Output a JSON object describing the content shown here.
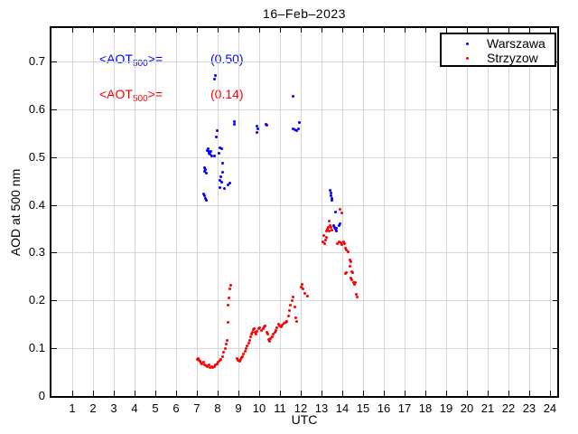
{
  "title": "16–Feb–2023",
  "annotations": [
    {
      "prefix": "<AOT",
      "sub": "500",
      "suffix": ">=",
      "value": "(0.50)",
      "color": "#0000ff"
    },
    {
      "prefix": "<AOT",
      "sub": "500",
      "suffix": ">=",
      "value": "(0.14)",
      "color": "#ff0000"
    }
  ],
  "chart_data": {
    "type": "scatter",
    "title": "16–Feb–2023",
    "xlabel": "UTC",
    "ylabel": "AOD at 500 nm",
    "xlim": [
      0,
      24.35
    ],
    "ylim": [
      0,
      0.77
    ],
    "x_ticks": [
      1,
      2,
      3,
      4,
      5,
      6,
      7,
      8,
      9,
      10,
      11,
      12,
      13,
      14,
      15,
      16,
      17,
      18,
      19,
      20,
      21,
      22,
      23,
      24
    ],
    "y_ticks": [
      0,
      0.1,
      0.2,
      0.3,
      0.4,
      0.5,
      0.6,
      0.7
    ],
    "y_tick_labels": [
      "0",
      "0.1",
      "0.2",
      "0.3",
      "0.4",
      "0.5",
      "0.6",
      "0.7"
    ],
    "grid": true,
    "grid_color": "#d6d6d6",
    "legend_position": "top-right",
    "marker": "dot",
    "series": [
      {
        "name": "Warszawa",
        "color": "#0000ff",
        "mean_aot_500": 0.5,
        "points": [
          [
            7.91,
            0.67
          ],
          [
            7.85,
            0.664
          ],
          [
            7.34,
            0.423
          ],
          [
            7.38,
            0.419
          ],
          [
            7.41,
            0.414
          ],
          [
            7.44,
            0.41
          ],
          [
            7.36,
            0.477
          ],
          [
            7.43,
            0.473
          ],
          [
            7.38,
            0.47
          ],
          [
            7.45,
            0.466
          ],
          [
            7.52,
            0.513
          ],
          [
            7.55,
            0.517
          ],
          [
            7.57,
            0.508
          ],
          [
            7.6,
            0.511
          ],
          [
            7.63,
            0.506
          ],
          [
            7.66,
            0.512
          ],
          [
            7.7,
            0.503
          ],
          [
            7.83,
            0.503
          ],
          [
            7.95,
            0.542
          ],
          [
            7.98,
            0.555
          ],
          [
            8.05,
            0.508
          ],
          [
            8.09,
            0.519
          ],
          [
            8.19,
            0.517
          ],
          [
            8.26,
            0.487
          ],
          [
            8.22,
            0.469
          ],
          [
            8.16,
            0.459
          ],
          [
            8.12,
            0.451
          ],
          [
            8.19,
            0.448
          ],
          [
            8.09,
            0.437
          ],
          [
            8.33,
            0.434
          ],
          [
            8.52,
            0.441
          ],
          [
            8.57,
            0.445
          ],
          [
            8.79,
            0.575
          ],
          [
            8.82,
            0.568
          ],
          [
            9.88,
            0.565
          ],
          [
            9.93,
            0.559
          ],
          [
            9.91,
            0.551
          ],
          [
            10.31,
            0.569
          ],
          [
            10.38,
            0.567
          ],
          [
            11.61,
            0.627
          ],
          [
            11.63,
            0.56
          ],
          [
            11.72,
            0.557
          ],
          [
            11.79,
            0.556
          ],
          [
            11.88,
            0.559
          ],
          [
            11.95,
            0.572
          ],
          [
            13.43,
            0.43
          ],
          [
            13.45,
            0.425
          ],
          [
            13.46,
            0.42
          ],
          [
            13.48,
            0.414
          ],
          [
            13.5,
            0.409
          ],
          [
            13.67,
            0.385
          ],
          [
            13.6,
            0.356
          ],
          [
            13.64,
            0.352
          ],
          [
            13.67,
            0.349
          ],
          [
            13.7,
            0.346
          ],
          [
            13.73,
            0.351
          ],
          [
            13.86,
            0.357
          ],
          [
            13.91,
            0.36
          ]
        ]
      },
      {
        "name": "Strzyzow",
        "color": "#ff0000",
        "mean_aot_500": 0.14,
        "points": [
          [
            7.02,
            0.077
          ],
          [
            7.06,
            0.079
          ],
          [
            7.1,
            0.075
          ],
          [
            7.15,
            0.072
          ],
          [
            7.2,
            0.07
          ],
          [
            7.26,
            0.068
          ],
          [
            7.32,
            0.071
          ],
          [
            7.38,
            0.066
          ],
          [
            7.45,
            0.063
          ],
          [
            7.52,
            0.062
          ],
          [
            7.58,
            0.065
          ],
          [
            7.65,
            0.06
          ],
          [
            7.72,
            0.062
          ],
          [
            7.78,
            0.059
          ],
          [
            7.84,
            0.062
          ],
          [
            7.9,
            0.065
          ],
          [
            7.96,
            0.068
          ],
          [
            8.03,
            0.071
          ],
          [
            8.1,
            0.074
          ],
          [
            8.17,
            0.077
          ],
          [
            8.24,
            0.083
          ],
          [
            8.3,
            0.091
          ],
          [
            8.36,
            0.1
          ],
          [
            8.4,
            0.108
          ],
          [
            8.44,
            0.116
          ],
          [
            8.48,
            0.155
          ],
          [
            8.52,
            0.19
          ],
          [
            8.55,
            0.205
          ],
          [
            8.58,
            0.225
          ],
          [
            8.62,
            0.231
          ],
          [
            8.95,
            0.079
          ],
          [
            9.0,
            0.075
          ],
          [
            9.05,
            0.072
          ],
          [
            9.1,
            0.076
          ],
          [
            9.15,
            0.08
          ],
          [
            9.2,
            0.083
          ],
          [
            9.26,
            0.088
          ],
          [
            9.33,
            0.094
          ],
          [
            9.38,
            0.099
          ],
          [
            9.43,
            0.105
          ],
          [
            9.48,
            0.11
          ],
          [
            9.53,
            0.117
          ],
          [
            9.57,
            0.124
          ],
          [
            9.62,
            0.129
          ],
          [
            9.66,
            0.134
          ],
          [
            9.7,
            0.139
          ],
          [
            9.76,
            0.141
          ],
          [
            9.8,
            0.134
          ],
          [
            9.86,
            0.13
          ],
          [
            9.9,
            0.136
          ],
          [
            9.97,
            0.141
          ],
          [
            10.04,
            0.143
          ],
          [
            10.12,
            0.138
          ],
          [
            10.18,
            0.141
          ],
          [
            10.25,
            0.144
          ],
          [
            10.3,
            0.147
          ],
          [
            10.36,
            0.133
          ],
          [
            10.4,
            0.129
          ],
          [
            10.47,
            0.119
          ],
          [
            10.51,
            0.115
          ],
          [
            10.55,
            0.121
          ],
          [
            10.61,
            0.123
          ],
          [
            10.68,
            0.13
          ],
          [
            10.75,
            0.134
          ],
          [
            10.8,
            0.137
          ],
          [
            10.87,
            0.143
          ],
          [
            10.93,
            0.15
          ],
          [
            11.0,
            0.147
          ],
          [
            11.07,
            0.144
          ],
          [
            11.13,
            0.149
          ],
          [
            11.2,
            0.152
          ],
          [
            11.27,
            0.154
          ],
          [
            11.34,
            0.156
          ],
          [
            11.4,
            0.168
          ],
          [
            11.46,
            0.178
          ],
          [
            11.52,
            0.19
          ],
          [
            11.57,
            0.2
          ],
          [
            11.62,
            0.207
          ],
          [
            11.7,
            0.186
          ],
          [
            11.77,
            0.163
          ],
          [
            11.82,
            0.157
          ],
          [
            12.04,
            0.228
          ],
          [
            12.08,
            0.233
          ],
          [
            12.13,
            0.225
          ],
          [
            12.18,
            0.215
          ],
          [
            12.32,
            0.209
          ],
          [
            13.08,
            0.322
          ],
          [
            13.13,
            0.336
          ],
          [
            13.15,
            0.319
          ],
          [
            13.18,
            0.327
          ],
          [
            13.22,
            0.346
          ],
          [
            13.25,
            0.332
          ],
          [
            13.29,
            0.349
          ],
          [
            13.32,
            0.352
          ],
          [
            13.35,
            0.345
          ],
          [
            13.39,
            0.366
          ],
          [
            13.42,
            0.357
          ],
          [
            13.46,
            0.352
          ],
          [
            13.5,
            0.347
          ],
          [
            13.9,
            0.391
          ],
          [
            13.96,
            0.383
          ],
          [
            13.78,
            0.318
          ],
          [
            13.85,
            0.322
          ],
          [
            13.92,
            0.32
          ],
          [
            13.98,
            0.317
          ],
          [
            14.05,
            0.322
          ],
          [
            14.1,
            0.318
          ],
          [
            14.15,
            0.309
          ],
          [
            14.2,
            0.306
          ],
          [
            14.28,
            0.301
          ],
          [
            14.15,
            0.257
          ],
          [
            14.19,
            0.259
          ],
          [
            14.35,
            0.272
          ],
          [
            14.38,
            0.284
          ],
          [
            14.42,
            0.281
          ],
          [
            14.43,
            0.247
          ],
          [
            14.47,
            0.244
          ],
          [
            14.46,
            0.261
          ],
          [
            14.5,
            0.258
          ],
          [
            14.53,
            0.237
          ],
          [
            14.57,
            0.234
          ],
          [
            14.62,
            0.238
          ],
          [
            14.67,
            0.212
          ],
          [
            14.71,
            0.208
          ]
        ]
      }
    ]
  }
}
